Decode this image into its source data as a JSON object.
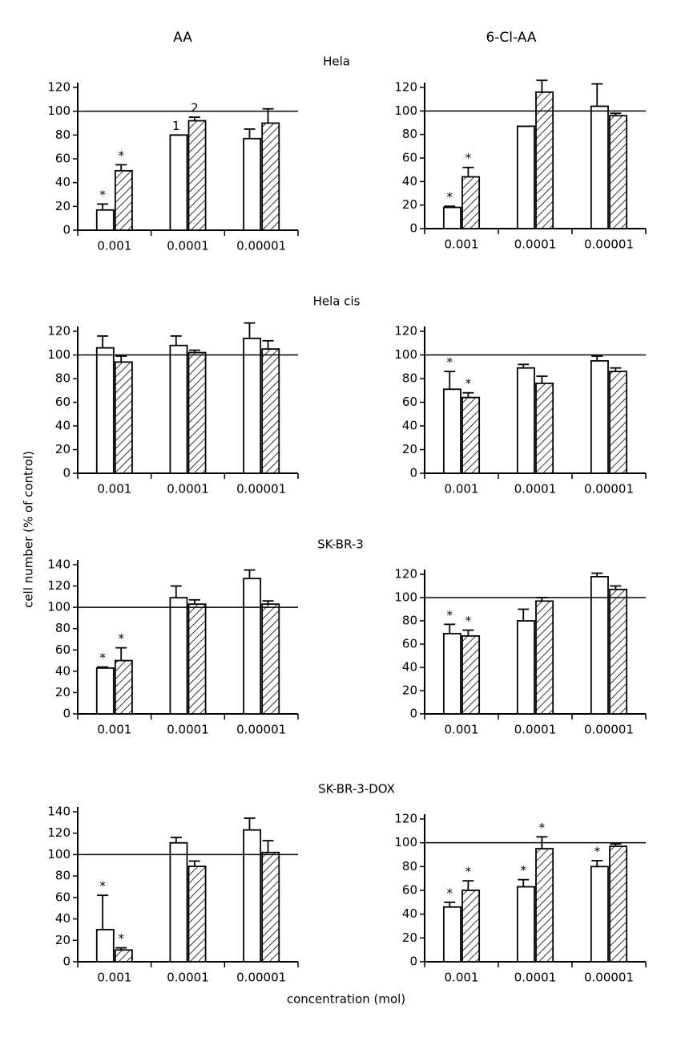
{
  "figure": {
    "column_titles": [
      "AA",
      "6-Cl-AA"
    ],
    "row_titles": [
      "Hela",
      "Hela cis",
      "SK-BR-3",
      "SK-BR-3-DOX"
    ],
    "ylabel": "cell number (% of control)",
    "xlabel": "concentration (mol)"
  },
  "chart_data": [
    {
      "type": "bar",
      "categories": [
        "0.001",
        "0.0001",
        "0.00001"
      ],
      "ylim": [
        0,
        120
      ],
      "yticks": [
        0,
        20,
        40,
        60,
        80,
        100,
        120
      ],
      "hline": 100,
      "series": [
        {
          "color": "#ffffff",
          "values": [
            17,
            80,
            77
          ],
          "errors": [
            5,
            0,
            8
          ],
          "annotations": [
            "*",
            "1",
            null
          ]
        },
        {
          "color": "#000000",
          "hatch": true,
          "values": [
            50,
            92,
            90
          ],
          "errors": [
            5,
            3,
            12
          ],
          "annotations": [
            "*",
            "2",
            null
          ]
        }
      ]
    },
    {
      "type": "bar",
      "categories": [
        "0.001",
        "0.0001",
        "0.00001"
      ],
      "ylim": [
        0,
        120
      ],
      "yticks": [
        0,
        20,
        40,
        60,
        80,
        100,
        120
      ],
      "hline": 100,
      "series": [
        {
          "color": "#ffffff",
          "values": [
            18,
            87,
            104
          ],
          "errors": [
            1,
            0,
            19
          ],
          "annotations": [
            "*",
            null,
            null
          ]
        },
        {
          "color": "#000000",
          "hatch": true,
          "values": [
            44,
            116,
            96
          ],
          "errors": [
            8,
            10,
            2
          ],
          "annotations": [
            "*",
            null,
            null
          ]
        }
      ]
    },
    {
      "type": "bar",
      "categories": [
        "0.001",
        "0.0001",
        "0.00001"
      ],
      "ylim": [
        0,
        120
      ],
      "yticks": [
        0,
        20,
        40,
        60,
        80,
        100,
        120
      ],
      "hline": 100,
      "series": [
        {
          "color": "#ffffff",
          "values": [
            106,
            108,
            114
          ],
          "errors": [
            10,
            8,
            13
          ],
          "annotations": [
            null,
            null,
            null
          ]
        },
        {
          "color": "#000000",
          "hatch": true,
          "values": [
            94,
            102,
            105
          ],
          "errors": [
            5,
            2,
            7
          ],
          "annotations": [
            null,
            null,
            null
          ]
        }
      ]
    },
    {
      "type": "bar",
      "categories": [
        "0.001",
        "0.0001",
        "0.00001"
      ],
      "ylim": [
        0,
        120
      ],
      "yticks": [
        0,
        20,
        40,
        60,
        80,
        100,
        120
      ],
      "hline": 100,
      "series": [
        {
          "color": "#ffffff",
          "values": [
            71,
            89,
            95
          ],
          "errors": [
            15,
            3,
            4
          ],
          "annotations": [
            "*",
            null,
            null
          ]
        },
        {
          "color": "#000000",
          "hatch": true,
          "values": [
            64,
            76,
            86
          ],
          "errors": [
            4,
            6,
            3
          ],
          "annotations": [
            "*",
            null,
            null
          ]
        }
      ]
    },
    {
      "type": "bar",
      "categories": [
        "0.001",
        "0.0001",
        "0.00001"
      ],
      "ylim": [
        0,
        140
      ],
      "yticks": [
        0,
        20,
        40,
        60,
        80,
        100,
        120,
        140
      ],
      "hline": 100,
      "series": [
        {
          "color": "#ffffff",
          "values": [
            43,
            109,
            127
          ],
          "errors": [
            1,
            11,
            8
          ],
          "annotations": [
            "*",
            null,
            null
          ]
        },
        {
          "color": "#000000",
          "hatch": true,
          "values": [
            50,
            103,
            103
          ],
          "errors": [
            12,
            4,
            3
          ],
          "annotations": [
            "*",
            null,
            null
          ]
        }
      ]
    },
    {
      "type": "bar",
      "categories": [
        "0.001",
        "0.0001",
        "0.00001"
      ],
      "ylim": [
        0,
        120
      ],
      "yticks": [
        0,
        20,
        40,
        60,
        80,
        100,
        120
      ],
      "hline": 100,
      "series": [
        {
          "color": "#ffffff",
          "values": [
            69,
            80,
            118
          ],
          "errors": [
            8,
            10,
            3
          ],
          "annotations": [
            "*",
            null,
            null
          ]
        },
        {
          "color": "#000000",
          "hatch": true,
          "values": [
            67,
            97,
            107
          ],
          "errors": [
            5,
            3,
            3
          ],
          "annotations": [
            "*",
            null,
            null
          ]
        }
      ]
    },
    {
      "type": "bar",
      "categories": [
        "0.001",
        "0.0001",
        "0.00001"
      ],
      "ylim": [
        0,
        140
      ],
      "yticks": [
        0,
        20,
        40,
        60,
        80,
        100,
        120,
        140
      ],
      "hline": 100,
      "series": [
        {
          "color": "#ffffff",
          "values": [
            30,
            111,
            123
          ],
          "errors": [
            32,
            5,
            11
          ],
          "annotations": [
            "*",
            null,
            null
          ]
        },
        {
          "color": "#000000",
          "hatch": true,
          "values": [
            11,
            89,
            102
          ],
          "errors": [
            2,
            5,
            11
          ],
          "annotations": [
            "*",
            null,
            null
          ]
        }
      ]
    },
    {
      "type": "bar",
      "categories": [
        "0.001",
        "0.0001",
        "0.00001"
      ],
      "ylim": [
        0,
        120
      ],
      "yticks": [
        0,
        20,
        40,
        60,
        80,
        100,
        120
      ],
      "hline": 100,
      "series": [
        {
          "color": "#ffffff",
          "values": [
            46,
            63,
            80
          ],
          "errors": [
            4,
            6,
            5
          ],
          "annotations": [
            "*",
            "*",
            "*"
          ]
        },
        {
          "color": "#000000",
          "hatch": true,
          "values": [
            60,
            95,
            97
          ],
          "errors": [
            8,
            10,
            2
          ],
          "annotations": [
            "*",
            "*",
            null
          ]
        }
      ]
    }
  ]
}
